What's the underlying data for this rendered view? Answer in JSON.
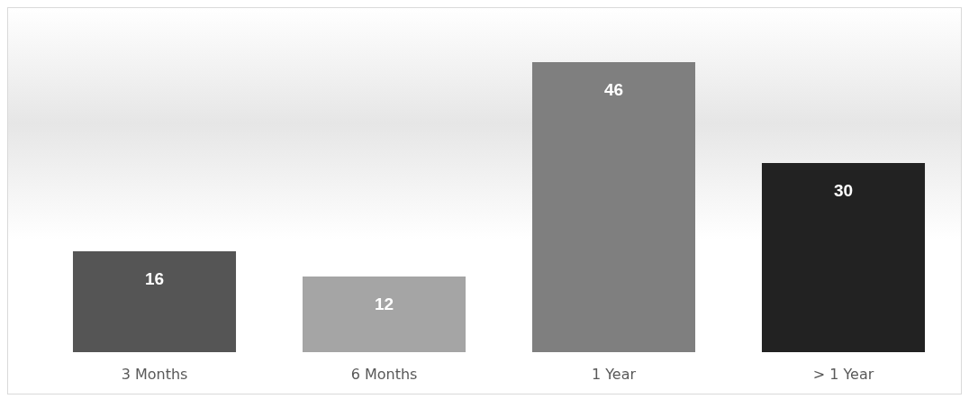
{
  "chart_data": {
    "type": "bar",
    "categories": [
      "3 Months",
      "6 Months",
      "1 Year",
      "> 1 Year"
    ],
    "values": [
      16,
      12,
      46,
      30
    ],
    "colors": [
      "#555555",
      "#a5a5a5",
      "#7f7f7f",
      "#222222"
    ],
    "data_labels": true
  }
}
